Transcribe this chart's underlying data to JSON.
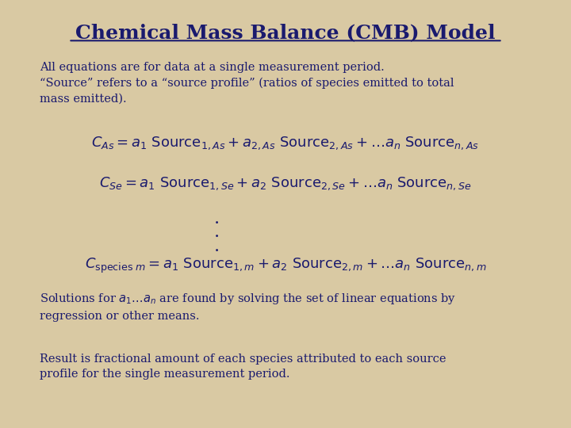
{
  "title": "Chemical Mass Balance (CMB) Model",
  "bg_color": "#d9c9a3",
  "title_color": "#1a1a6e",
  "text_color": "#1a1a6e",
  "intro_text": "All equations are for data at a single measurement period.\n“Source” refers to a “source profile” (ratios of species emitted to total\nmass emitted).",
  "eq1": "$C_{As} = a_1\\ \\mathrm{Source}_{1,As} + a_{2,As}\\ \\mathrm{Source}_{2,As} + \\ldots a_n\\ \\mathrm{Source}_{n,As}$",
  "eq2": "$C_{Se} = a_1\\ \\mathrm{Source}_{1,Se} + a_2\\ \\mathrm{Source}_{2,Se} + \\ldots a_n\\ \\mathrm{Source}_{n,Se}$",
  "eq3": "$C_{\\mathrm{species}\\ m} = a_1\\ \\mathrm{Source}_{1,m} + a_2\\ \\mathrm{Source}_{2,m} + \\ldots a_n\\ \\mathrm{Source}_{n,m}$",
  "solutions_text": "Solutions for $a_1 \\ldots a_n$ are found by solving the set of linear equations by\nregression or other means.",
  "result_text": "Result is fractional amount of each species attributed to each source\nprofile for the single measurement period."
}
